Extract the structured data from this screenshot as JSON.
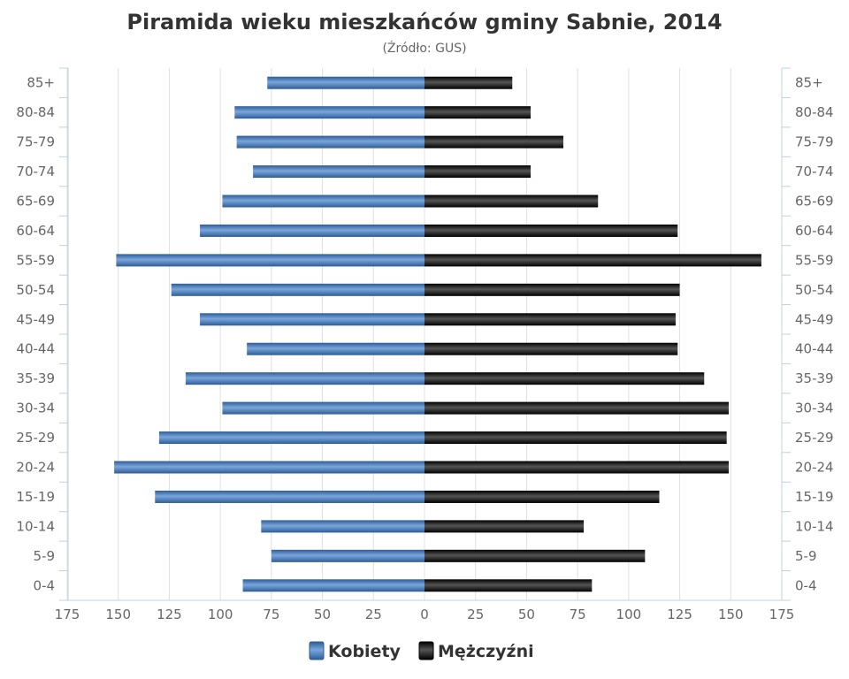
{
  "chart_data": {
    "type": "bar",
    "orientation": "horizontal-pyramid",
    "title": "Piramida wieku mieszkańców gminy Sabnie, 2014",
    "subtitle": "(Źródło: GUS)",
    "categories": [
      "85+",
      "80-84",
      "75-79",
      "70-74",
      "65-69",
      "60-64",
      "55-59",
      "50-54",
      "45-49",
      "40-44",
      "35-39",
      "30-34",
      "25-29",
      "20-24",
      "15-19",
      "10-14",
      "5-9",
      "0-4"
    ],
    "series": [
      {
        "name": "Kobiety",
        "side": "left",
        "color": "#4572A7",
        "values": [
          77,
          93,
          92,
          84,
          99,
          110,
          151,
          124,
          110,
          87,
          117,
          99,
          130,
          152,
          132,
          80,
          75,
          89
        ]
      },
      {
        "name": "Mężczyźni",
        "side": "right",
        "color": "#1a1a1a",
        "values": [
          43,
          52,
          68,
          52,
          85,
          124,
          165,
          125,
          123,
          124,
          137,
          149,
          148,
          149,
          115,
          78,
          108,
          82
        ]
      }
    ],
    "xlim": [
      -175,
      175
    ],
    "xticks": [
      "175",
      "150",
      "125",
      "100",
      "75",
      "50",
      "25",
      "0",
      "25",
      "50",
      "75",
      "100",
      "125",
      "150",
      "175"
    ],
    "grid": true,
    "legend_position": "bottom-center"
  }
}
